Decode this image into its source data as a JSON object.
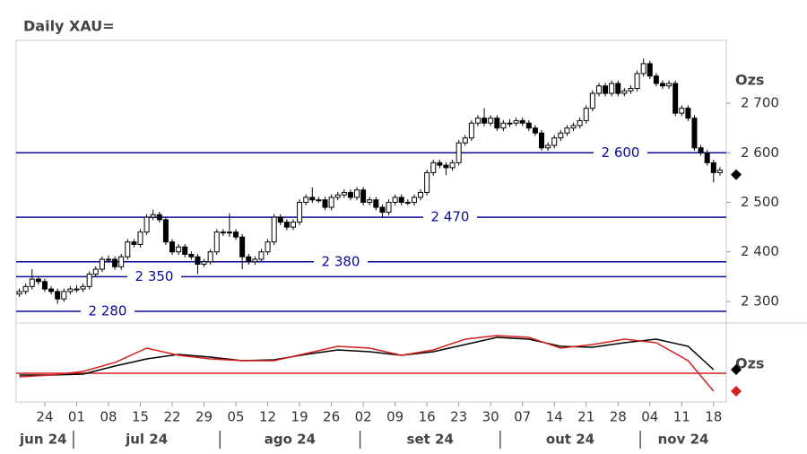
{
  "chart_data": [
    {
      "type": "candlestick",
      "title": "Daily XAU=",
      "unit": "Ozs",
      "ohlc": [
        [
          2315,
          2326,
          2309,
          2320
        ],
        [
          2320,
          2336,
          2314,
          2330
        ],
        [
          2330,
          2365,
          2324,
          2345
        ],
        [
          2345,
          2351,
          2334,
          2340
        ],
        [
          2340,
          2346,
          2319,
          2325
        ],
        [
          2325,
          2331,
          2314,
          2320
        ],
        [
          2320,
          2326,
          2295,
          2305
        ],
        [
          2305,
          2326,
          2299,
          2320
        ],
        [
          2320,
          2331,
          2314,
          2325
        ],
        [
          2325,
          2333,
          2318,
          2325
        ],
        [
          2325,
          2336,
          2319,
          2330
        ],
        [
          2330,
          2361,
          2324,
          2355
        ],
        [
          2355,
          2371,
          2349,
          2365
        ],
        [
          2365,
          2391,
          2359,
          2385
        ],
        [
          2385,
          2393,
          2378,
          2385
        ],
        [
          2385,
          2391,
          2364,
          2370
        ],
        [
          2370,
          2396,
          2364,
          2390
        ],
        [
          2390,
          2426,
          2384,
          2420
        ],
        [
          2420,
          2426,
          2409,
          2415
        ],
        [
          2415,
          2446,
          2409,
          2440
        ],
        [
          2440,
          2476,
          2434,
          2470
        ],
        [
          2470,
          2485,
          2464,
          2475
        ],
        [
          2475,
          2481,
          2459,
          2465
        ],
        [
          2465,
          2471,
          2414,
          2420
        ],
        [
          2420,
          2426,
          2394,
          2400
        ],
        [
          2400,
          2416,
          2394,
          2410
        ],
        [
          2410,
          2416,
          2389,
          2395
        ],
        [
          2395,
          2401,
          2384,
          2390
        ],
        [
          2390,
          2396,
          2355,
          2375
        ],
        [
          2375,
          2386,
          2369,
          2380
        ],
        [
          2380,
          2406,
          2374,
          2400
        ],
        [
          2400,
          2446,
          2394,
          2440
        ],
        [
          2440,
          2446,
          2432,
          2440
        ],
        [
          2440,
          2478,
          2430,
          2440
        ],
        [
          2440,
          2446,
          2424,
          2430
        ],
        [
          2430,
          2436,
          2365,
          2390
        ],
        [
          2390,
          2396,
          2374,
          2380
        ],
        [
          2380,
          2391,
          2374,
          2385
        ],
        [
          2385,
          2406,
          2379,
          2400
        ],
        [
          2400,
          2426,
          2394,
          2420
        ],
        [
          2420,
          2476,
          2414,
          2470
        ],
        [
          2470,
          2476,
          2454,
          2460
        ],
        [
          2460,
          2466,
          2444,
          2450
        ],
        [
          2450,
          2466,
          2444,
          2460
        ],
        [
          2460,
          2506,
          2454,
          2500
        ],
        [
          2500,
          2516,
          2494,
          2510
        ],
        [
          2510,
          2530,
          2499,
          2505
        ],
        [
          2505,
          2511,
          2499,
          2505
        ],
        [
          2505,
          2511,
          2484,
          2490
        ],
        [
          2490,
          2516,
          2484,
          2510
        ],
        [
          2510,
          2521,
          2504,
          2515
        ],
        [
          2515,
          2526,
          2509,
          2520
        ],
        [
          2520,
          2526,
          2504,
          2510
        ],
        [
          2510,
          2531,
          2504,
          2525
        ],
        [
          2525,
          2531,
          2494,
          2500
        ],
        [
          2500,
          2511,
          2494,
          2505
        ],
        [
          2505,
          2511,
          2484,
          2490
        ],
        [
          2490,
          2496,
          2470,
          2480
        ],
        [
          2480,
          2506,
          2474,
          2500
        ],
        [
          2500,
          2516,
          2494,
          2510
        ],
        [
          2510,
          2516,
          2494,
          2500
        ],
        [
          2500,
          2506,
          2494,
          2500
        ],
        [
          2500,
          2516,
          2494,
          2510
        ],
        [
          2510,
          2526,
          2504,
          2520
        ],
        [
          2520,
          2566,
          2514,
          2560
        ],
        [
          2560,
          2586,
          2554,
          2580
        ],
        [
          2580,
          2586,
          2569,
          2575
        ],
        [
          2575,
          2581,
          2555,
          2570
        ],
        [
          2570,
          2586,
          2564,
          2580
        ],
        [
          2580,
          2626,
          2574,
          2620
        ],
        [
          2620,
          2636,
          2614,
          2630
        ],
        [
          2630,
          2666,
          2624,
          2660
        ],
        [
          2660,
          2676,
          2654,
          2670
        ],
        [
          2670,
          2690,
          2654,
          2660
        ],
        [
          2660,
          2676,
          2654,
          2670
        ],
        [
          2670,
          2676,
          2644,
          2650
        ],
        [
          2650,
          2666,
          2644,
          2660
        ],
        [
          2660,
          2668,
          2652,
          2660
        ],
        [
          2660,
          2671,
          2654,
          2665
        ],
        [
          2665,
          2671,
          2654,
          2660
        ],
        [
          2660,
          2666,
          2644,
          2650
        ],
        [
          2650,
          2656,
          2634,
          2640
        ],
        [
          2640,
          2646,
          2604,
          2610
        ],
        [
          2610,
          2621,
          2604,
          2615
        ],
        [
          2615,
          2636,
          2609,
          2630
        ],
        [
          2630,
          2646,
          2624,
          2640
        ],
        [
          2640,
          2656,
          2634,
          2650
        ],
        [
          2650,
          2661,
          2644,
          2655
        ],
        [
          2655,
          2671,
          2649,
          2665
        ],
        [
          2665,
          2696,
          2659,
          2690
        ],
        [
          2690,
          2726,
          2684,
          2720
        ],
        [
          2720,
          2741,
          2714,
          2735
        ],
        [
          2735,
          2741,
          2714,
          2720
        ],
        [
          2720,
          2746,
          2714,
          2740
        ],
        [
          2740,
          2746,
          2714,
          2720
        ],
        [
          2720,
          2731,
          2714,
          2725
        ],
        [
          2725,
          2736,
          2719,
          2730
        ],
        [
          2730,
          2766,
          2724,
          2760
        ],
        [
          2760,
          2790,
          2754,
          2780
        ],
        [
          2780,
          2786,
          2749,
          2755
        ],
        [
          2755,
          2761,
          2734,
          2740
        ],
        [
          2740,
          2746,
          2729,
          2735
        ],
        [
          2735,
          2746,
          2729,
          2740
        ],
        [
          2740,
          2746,
          2674,
          2680
        ],
        [
          2680,
          2696,
          2674,
          2690
        ],
        [
          2690,
          2696,
          2664,
          2670
        ],
        [
          2670,
          2676,
          2604,
          2610
        ],
        [
          2610,
          2616,
          2594,
          2600
        ],
        [
          2600,
          2606,
          2574,
          2580
        ],
        [
          2580,
          2586,
          2540,
          2560
        ],
        [
          2560,
          2571,
          2554,
          2565
        ]
      ],
      "ylim": [
        2260,
        2827
      ],
      "yticks": [
        {
          "value": 2300,
          "label": "2 300"
        },
        {
          "value": 2400,
          "label": "2 400"
        },
        {
          "value": 2500,
          "label": "2 500"
        },
        {
          "value": 2600,
          "label": "2 600"
        },
        {
          "value": 2700,
          "label": "2 700"
        }
      ],
      "levels": [
        {
          "value": 2600,
          "label": "2 600"
        },
        {
          "value": 2470,
          "label": "2 470"
        },
        {
          "value": 2380,
          "label": "2 380"
        },
        {
          "value": 2350,
          "label": "2 350"
        },
        {
          "value": 2280,
          "label": "2 280"
        }
      ],
      "level_color": "#0a0a9c",
      "xlim": [
        -0.5,
        111
      ],
      "xticks": [
        {
          "value": 4,
          "label": "24"
        },
        {
          "value": 9,
          "label": "01"
        },
        {
          "value": 14,
          "label": "08"
        },
        {
          "value": 19,
          "label": "15"
        },
        {
          "value": 24,
          "label": "22"
        },
        {
          "value": 29,
          "label": "29"
        },
        {
          "value": 34,
          "label": "05"
        },
        {
          "value": 39,
          "label": "12"
        },
        {
          "value": 44,
          "label": "19"
        },
        {
          "value": 49,
          "label": "26"
        },
        {
          "value": 54,
          "label": "02"
        },
        {
          "value": 59,
          "label": "09"
        },
        {
          "value": 64,
          "label": "16"
        },
        {
          "value": 69,
          "label": "23"
        },
        {
          "value": 74,
          "label": "30"
        },
        {
          "value": 79,
          "label": "07"
        },
        {
          "value": 84,
          "label": "14"
        },
        {
          "value": 89,
          "label": "21"
        },
        {
          "value": 94,
          "label": "28"
        },
        {
          "value": 99,
          "label": "04"
        },
        {
          "value": 104,
          "label": "11"
        },
        {
          "value": 109,
          "label": "18"
        }
      ],
      "months": [
        {
          "value": 0,
          "label": "jun 24"
        },
        {
          "value": 9,
          "label": "jul 24"
        },
        {
          "value": 32,
          "label": "ago 24"
        },
        {
          "value": 54,
          "label": "set 24"
        },
        {
          "value": 76,
          "label": "out 24"
        },
        {
          "value": 98,
          "label": "nov 24"
        }
      ]
    },
    {
      "type": "line",
      "unit": "Ozs",
      "x": [
        0,
        5,
        10,
        15,
        20,
        25,
        30,
        35,
        40,
        45,
        50,
        55,
        60,
        65,
        70,
        75,
        80,
        85,
        90,
        95,
        100,
        105,
        109
      ],
      "series": [
        {
          "color": "#000000",
          "values": [
            -2,
            -2,
            -1,
            8,
            16,
            21,
            18,
            14,
            15,
            21,
            26,
            24,
            20,
            24,
            32,
            40,
            38,
            30,
            29,
            34,
            38,
            30,
            4
          ]
        },
        {
          "color": "#d42020",
          "values": [
            -4,
            -2,
            2,
            12,
            28,
            20,
            16,
            14,
            14,
            22,
            30,
            28,
            20,
            26,
            38,
            42,
            40,
            28,
            32,
            38,
            34,
            14,
            -20
          ]
        }
      ],
      "ylim": [
        -32,
        54
      ],
      "xlim": [
        -0.5,
        111
      ],
      "reference": 0,
      "reference_color": "#d42020"
    }
  ]
}
